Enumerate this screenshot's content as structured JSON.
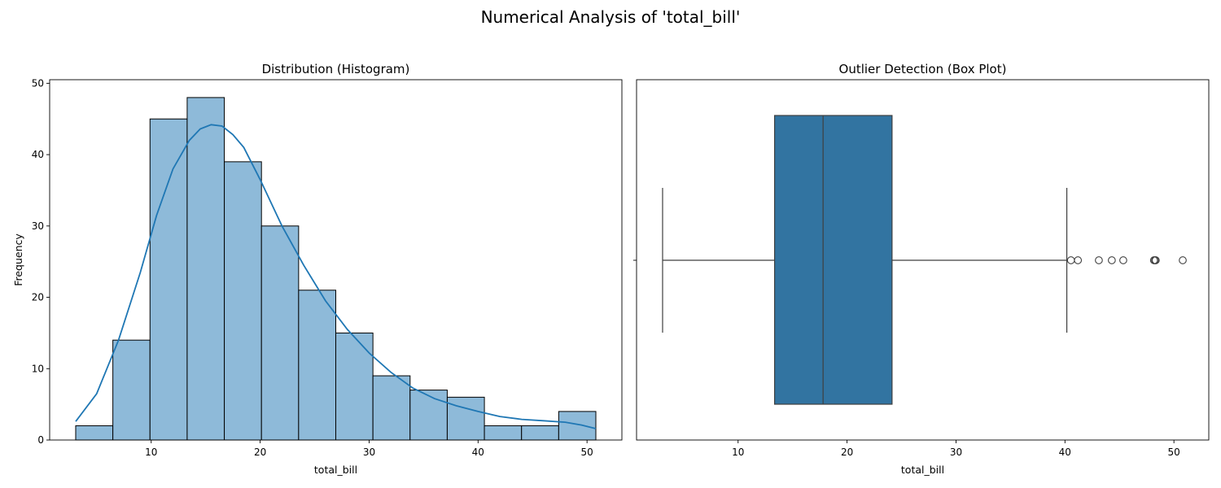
{
  "figure": {
    "title": "Numerical Analysis of 'total_bill'"
  },
  "colors": {
    "hist_fill": "#8ebad9",
    "hist_edge": "#000000",
    "kde_line": "#1f77b4",
    "box_fill": "#3274a1",
    "box_edge": "#3f3f3f"
  },
  "chart_data": [
    {
      "type": "bar",
      "subtype": "histogram",
      "title": "Distribution (Histogram)",
      "xlabel": "total_bill",
      "ylabel": "Frequency",
      "xlim": [
        0.68,
        53.2
      ],
      "ylim": [
        0,
        50.5
      ],
      "xticks": [
        10,
        20,
        30,
        40,
        50
      ],
      "yticks": [
        0,
        10,
        20,
        30,
        40,
        50
      ],
      "bin_edges": [
        3.07,
        6.48,
        9.89,
        13.3,
        16.71,
        20.12,
        23.53,
        26.94,
        30.35,
        33.76,
        37.17,
        40.58,
        43.99,
        47.4,
        50.81
      ],
      "values": [
        2,
        14,
        45,
        48,
        39,
        30,
        21,
        15,
        9,
        7,
        6,
        2,
        2,
        4
      ],
      "kde": {
        "x": [
          3.07,
          5.0,
          7.0,
          9.0,
          10.5,
          12.0,
          13.5,
          14.5,
          15.5,
          16.5,
          17.5,
          18.5,
          20.0,
          22.0,
          24.0,
          26.0,
          28.0,
          30.0,
          32.0,
          34.0,
          36.0,
          38.0,
          40.0,
          42.0,
          44.0,
          46.0,
          48.0,
          49.5,
          50.81
        ],
        "y": [
          2.6,
          6.5,
          14.0,
          23.5,
          31.5,
          38.0,
          42.0,
          43.6,
          44.2,
          44.0,
          42.8,
          41.0,
          36.5,
          30.0,
          24.5,
          19.5,
          15.5,
          12.2,
          9.5,
          7.3,
          5.8,
          4.8,
          4.0,
          3.3,
          2.9,
          2.7,
          2.5,
          2.1,
          1.6
        ]
      },
      "grid": false
    },
    {
      "type": "box",
      "title": "Outlier Detection (Box Plot)",
      "xlabel": "total_bill",
      "xlim": [
        0.68,
        53.2
      ],
      "xticks": [
        10,
        20,
        30,
        40,
        50
      ],
      "whisker_low": 3.07,
      "q1": 13.35,
      "median": 17.8,
      "q3": 24.13,
      "whisker_high": 40.17,
      "outliers": [
        40.55,
        41.19,
        43.11,
        44.3,
        45.35,
        48.17,
        48.27,
        48.33,
        50.81
      ],
      "grid": false
    }
  ]
}
